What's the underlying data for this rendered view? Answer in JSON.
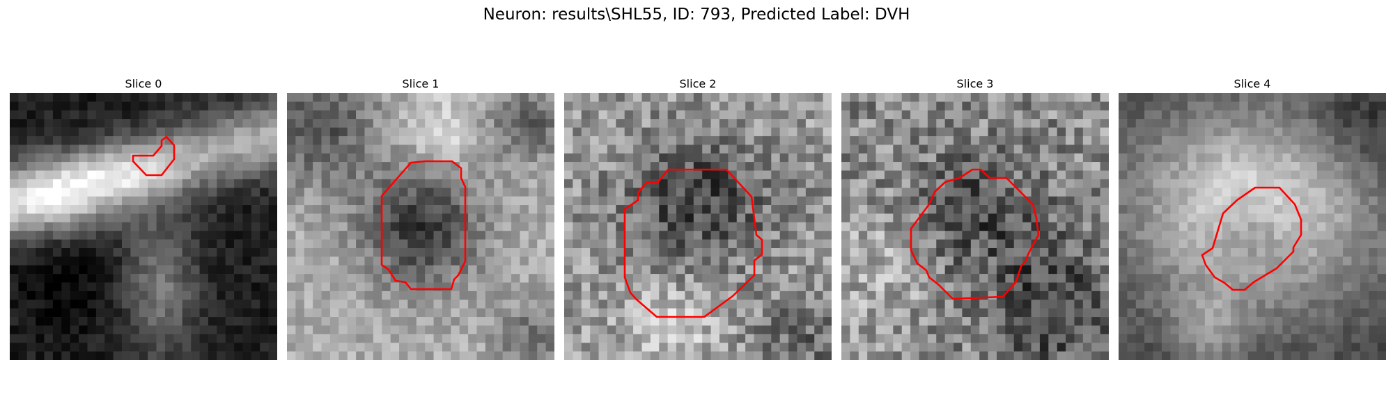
{
  "figure": {
    "title": "Neuron: results\\SHL55, ID: 793, Predicted Label: DVH",
    "outline_color": "#ff0000",
    "colormap": "grayscale"
  },
  "panels": [
    {
      "title": "Slice 0"
    },
    {
      "title": "Slice 1"
    },
    {
      "title": "Slice 2"
    },
    {
      "title": "Slice 3"
    },
    {
      "title": "Slice 4"
    }
  ]
}
